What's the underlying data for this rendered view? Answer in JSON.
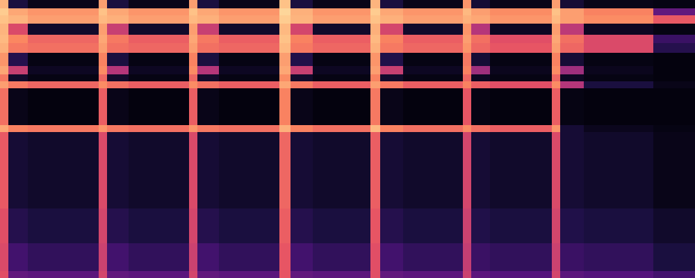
{
  "chart_data": {
    "type": "heatmap",
    "tick_labels": false,
    "xlim": [
      0,
      1000
    ],
    "ylim": [
      0,
      400
    ],
    "zlim": [
      0,
      100
    ],
    "x": [
      0,
      12,
      40,
      142,
      154,
      185,
      272,
      284,
      315,
      402,
      418,
      450,
      533,
      547,
      580,
      666,
      678,
      705,
      794,
      806,
      840,
      940,
      1000
    ],
    "y": [
      0,
      10,
      50,
      100,
      210,
      220,
      273,
      283,
      293,
      305,
      324,
      338,
      350,
      366,
      378,
      388,
      400
    ],
    "z": [
      [
        62,
        30,
        28,
        58,
        30,
        28,
        58,
        30,
        28,
        64,
        30,
        28,
        62,
        30,
        28,
        56,
        28,
        26,
        58,
        28,
        26,
        22
      ],
      [
        60,
        22,
        18,
        56,
        22,
        18,
        56,
        22,
        18,
        64,
        22,
        18,
        62,
        22,
        18,
        54,
        20,
        18,
        56,
        20,
        18,
        12
      ],
      [
        62,
        15,
        12,
        58,
        15,
        12,
        58,
        15,
        12,
        66,
        15,
        12,
        64,
        15,
        12,
        56,
        14,
        12,
        58,
        14,
        12,
        8
      ],
      [
        65,
        10,
        8,
        60,
        10,
        8,
        60,
        10,
        8,
        68,
        10,
        8,
        66,
        10,
        8,
        58,
        10,
        8,
        60,
        10,
        8,
        4
      ],
      [
        82,
        74,
        72,
        78,
        72,
        70,
        78,
        72,
        70,
        84,
        74,
        70,
        86,
        74,
        70,
        76,
        70,
        66,
        78,
        10,
        5,
        3
      ],
      [
        70,
        4,
        2,
        66,
        4,
        2,
        66,
        4,
        2,
        74,
        4,
        2,
        72,
        4,
        2,
        64,
        3,
        2,
        66,
        3,
        2,
        2
      ],
      [
        80,
        72,
        68,
        76,
        70,
        66,
        76,
        70,
        66,
        82,
        72,
        66,
        80,
        72,
        66,
        74,
        66,
        62,
        76,
        50,
        12,
        4
      ],
      [
        72,
        8,
        3,
        68,
        8,
        3,
        68,
        8,
        3,
        76,
        8,
        3,
        74,
        8,
        3,
        68,
        6,
        3,
        68,
        6,
        3,
        2
      ],
      [
        82,
        55,
        6,
        76,
        50,
        6,
        76,
        50,
        6,
        82,
        55,
        6,
        80,
        55,
        6,
        74,
        45,
        5,
        76,
        45,
        5,
        2
      ],
      [
        78,
        15,
        3,
        74,
        12,
        3,
        74,
        12,
        3,
        80,
        14,
        3,
        78,
        14,
        3,
        72,
        10,
        3,
        74,
        10,
        3,
        2
      ],
      [
        84,
        72,
        70,
        80,
        70,
        68,
        80,
        70,
        68,
        86,
        72,
        68,
        84,
        72,
        68,
        78,
        68,
        64,
        80,
        68,
        60,
        15
      ],
      [
        86,
        75,
        68,
        82,
        72,
        66,
        82,
        72,
        66,
        88,
        74,
        66,
        86,
        74,
        66,
        80,
        70,
        62,
        82,
        70,
        60,
        20
      ],
      [
        85,
        60,
        8,
        80,
        55,
        8,
        80,
        55,
        8,
        86,
        58,
        8,
        84,
        58,
        8,
        78,
        50,
        6,
        80,
        52,
        6,
        3
      ],
      [
        88,
        85,
        80,
        86,
        84,
        80,
        86,
        84,
        80,
        90,
        85,
        80,
        88,
        84,
        80,
        84,
        82,
        78,
        86,
        80,
        76,
        65
      ],
      [
        90,
        82,
        78,
        88,
        82,
        78,
        88,
        82,
        78,
        92,
        84,
        78,
        90,
        82,
        78,
        86,
        80,
        76,
        88,
        80,
        74,
        30
      ],
      [
        85,
        12,
        4,
        80,
        12,
        4,
        80,
        12,
        4,
        88,
        12,
        4,
        85,
        12,
        4,
        78,
        10,
        4,
        80,
        10,
        4,
        3
      ]
    ]
  }
}
